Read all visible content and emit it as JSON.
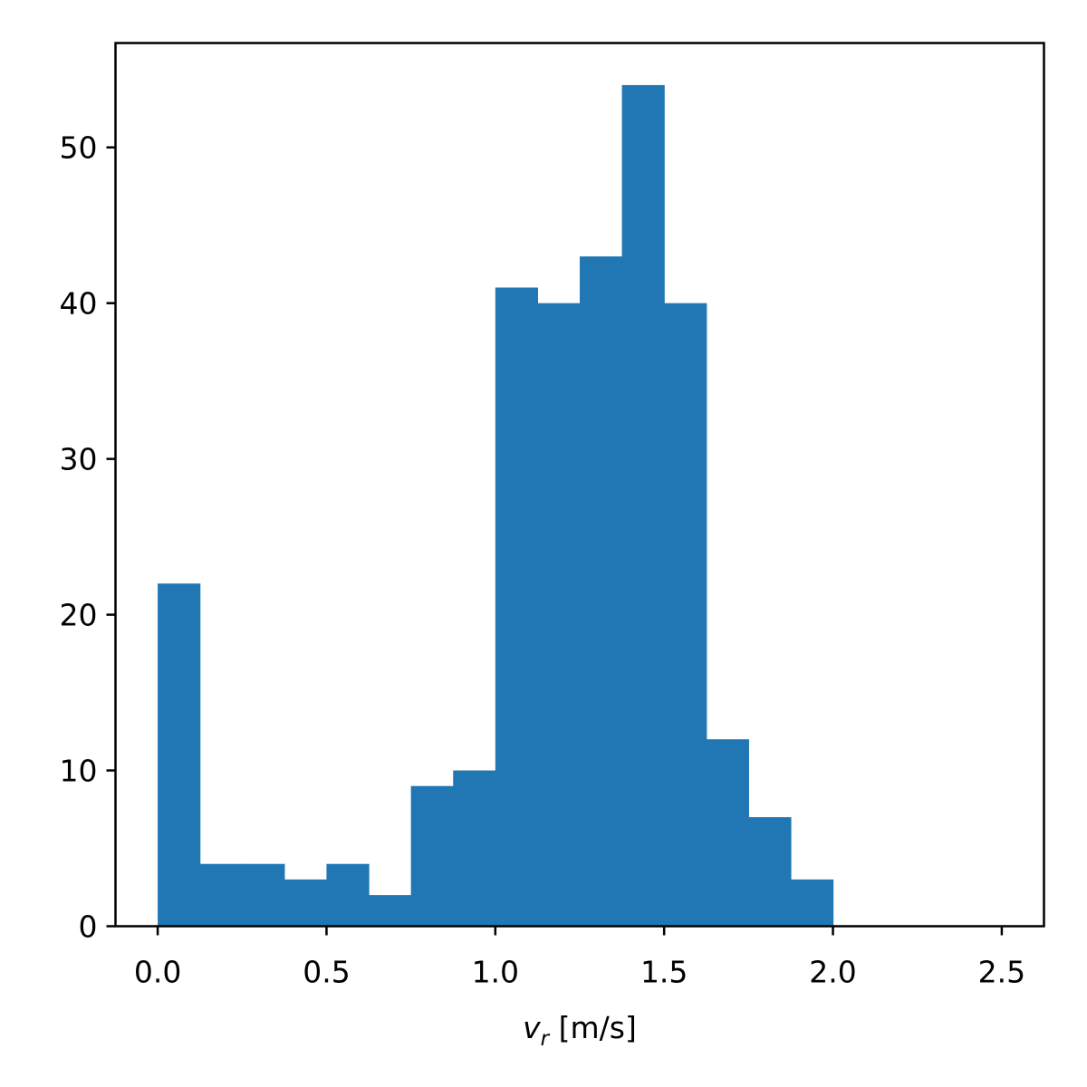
{
  "chart_data": {
    "type": "bar",
    "subtype": "histogram",
    "color": "#2077b4",
    "bin_edges": [
      0.0,
      0.125,
      0.25,
      0.375,
      0.5,
      0.625,
      0.75,
      0.875,
      1.0,
      1.125,
      1.25,
      1.375,
      1.5,
      1.625,
      1.75,
      1.875,
      2.0,
      2.125,
      2.25,
      2.375,
      2.5
    ],
    "values": [
      22,
      4,
      4,
      3,
      4,
      2,
      9,
      10,
      41,
      40,
      43,
      54,
      40,
      12,
      7,
      3,
      0,
      0,
      0,
      0
    ],
    "xlim": [
      -0.125,
      2.625
    ],
    "ylim": [
      0,
      56.7
    ],
    "xticks": [
      0.0,
      0.5,
      1.0,
      1.5,
      2.0,
      2.5
    ],
    "xtick_labels": [
      "0.0",
      "0.5",
      "1.0",
      "1.5",
      "2.0",
      "2.5"
    ],
    "yticks": [
      0,
      10,
      20,
      30,
      40,
      50
    ],
    "ytick_labels": [
      "0",
      "10",
      "20",
      "30",
      "40",
      "50"
    ],
    "xlabel": {
      "symbol": "v",
      "subscript": "r",
      "unit": " [m/s]"
    },
    "ylabel": "",
    "title": "",
    "grid": false,
    "legend": "none"
  }
}
